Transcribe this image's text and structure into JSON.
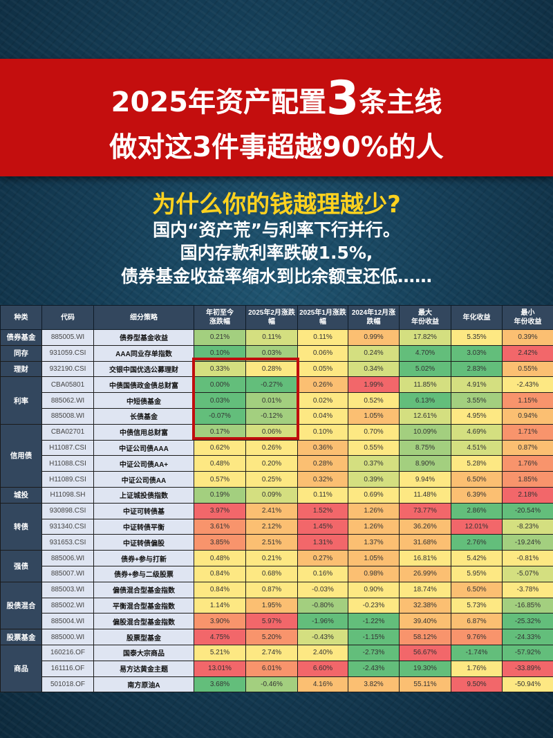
{
  "title": {
    "line1_pre": "2025年资产配置",
    "line1_num": "3",
    "line1_post": "条主线",
    "line2": "做对这3件事超越90%的人"
  },
  "subtitle": {
    "question": "为什么你的钱越理越少?",
    "line1": "国内“资产荒”与利率下行并行。",
    "line2": "国内存款利率跌破1.5%,",
    "line3": "债券基金收益率缩水到比余额宝还低……"
  },
  "palette": {
    "g": "#63be7b",
    "lg": "#a3cf7f",
    "yl": "#d4df80",
    "y": "#fde883",
    "o": "#fbbf72",
    "or": "#f8946c",
    "r": "#f2676a",
    "highlight": "#c00d0d",
    "banner": "#c40e0e"
  },
  "table": {
    "headers": [
      "种类",
      "代码",
      "细分策略",
      "年初至今\n涨跌幅",
      "2025年2月涨跌幅",
      "2025年1月涨跌幅",
      "2024年12月涨跌幅",
      "最大\n年份收益",
      "年化收益",
      "最小\n年份收益"
    ],
    "groups": [
      {
        "name": "债券基金",
        "rows": 1
      },
      {
        "name": "同存",
        "rows": 1
      },
      {
        "name": "理财",
        "rows": 1
      },
      {
        "name": "利率",
        "rows": 3
      },
      {
        "name": "信用债",
        "rows": 4
      },
      {
        "name": "城投",
        "rows": 1
      },
      {
        "name": "转债",
        "rows": 3
      },
      {
        "name": "强债",
        "rows": 2
      },
      {
        "name": "股债混合",
        "rows": 3
      },
      {
        "name": "股票基金",
        "rows": 1
      },
      {
        "name": "商品",
        "rows": 3
      }
    ],
    "rows": [
      {
        "code": "885005.WI",
        "strategy": "债券型基金收益",
        "values": [
          "0.21%",
          "0.11%",
          "0.11%",
          "0.99%",
          "17.82%",
          "5.35%",
          "0.39%"
        ],
        "colors": [
          "lg",
          "yl",
          "y",
          "o",
          "yl",
          "y",
          "o"
        ]
      },
      {
        "code": "931059.CSI",
        "strategy": "AAA同业存单指数",
        "values": [
          "0.10%",
          "0.03%",
          "0.06%",
          "0.24%",
          "4.70%",
          "3.03%",
          "2.42%"
        ],
        "colors": [
          "g",
          "lg",
          "y",
          "yl",
          "g",
          "g",
          "r"
        ]
      },
      {
        "code": "932190.CSI",
        "strategy": "交银中国优选公募理财",
        "values": [
          "0.33%",
          "0.28%",
          "0.05%",
          "0.34%",
          "5.02%",
          "2.83%",
          "0.55%"
        ],
        "colors": [
          "yl",
          "y",
          "y",
          "yl",
          "g",
          "g",
          "o"
        ]
      },
      {
        "code": "CBA05801",
        "strategy": "中债国债政金债总财富",
        "values": [
          "0.00%",
          "-0.27%",
          "0.26%",
          "1.99%",
          "11.85%",
          "4.91%",
          "-2.43%"
        ],
        "colors": [
          "g",
          "g",
          "o",
          "r",
          "yl",
          "yl",
          "y"
        ]
      },
      {
        "code": "885062.WI",
        "strategy": "中短债基金",
        "values": [
          "0.03%",
          "0.01%",
          "0.02%",
          "0.52%",
          "6.13%",
          "3.55%",
          "1.15%"
        ],
        "colors": [
          "g",
          "lg",
          "y",
          "y",
          "g",
          "lg",
          "or"
        ]
      },
      {
        "code": "885008.WI",
        "strategy": "长债基金",
        "values": [
          "-0.07%",
          "-0.12%",
          "0.04%",
          "1.05%",
          "12.61%",
          "4.95%",
          "0.94%"
        ],
        "colors": [
          "g",
          "lg",
          "y",
          "o",
          "yl",
          "y",
          "o"
        ]
      },
      {
        "code": "CBA02701",
        "strategy": "中债信用总财富",
        "values": [
          "0.17%",
          "0.06%",
          "0.10%",
          "0.70%",
          "10.09%",
          "4.69%",
          "1.71%"
        ],
        "colors": [
          "lg",
          "yl",
          "y",
          "y",
          "lg",
          "yl",
          "or"
        ]
      },
      {
        "code": "H11087.CSI",
        "strategy": "中证公司债AAA",
        "values": [
          "0.62%",
          "0.26%",
          "0.36%",
          "0.55%",
          "8.75%",
          "4.51%",
          "0.87%"
        ],
        "colors": [
          "y",
          "y",
          "o",
          "y",
          "lg",
          "yl",
          "o"
        ]
      },
      {
        "code": "H11088.CSI",
        "strategy": "中证公司债AA+",
        "values": [
          "0.48%",
          "0.20%",
          "0.28%",
          "0.37%",
          "8.90%",
          "5.28%",
          "1.76%"
        ],
        "colors": [
          "y",
          "y",
          "o",
          "yl",
          "lg",
          "y",
          "or"
        ]
      },
      {
        "code": "H11089.CSI",
        "strategy": "中证公司债AA",
        "values": [
          "0.57%",
          "0.25%",
          "0.32%",
          "0.39%",
          "9.94%",
          "6.50%",
          "1.85%"
        ],
        "colors": [
          "y",
          "y",
          "o",
          "yl",
          "y",
          "o",
          "or"
        ]
      },
      {
        "code": "H11098.SH",
        "strategy": "上证城投债指数",
        "values": [
          "0.19%",
          "0.09%",
          "0.11%",
          "0.69%",
          "11.48%",
          "6.39%",
          "2.18%"
        ],
        "colors": [
          "lg",
          "yl",
          "y",
          "y",
          "y",
          "o",
          "r"
        ]
      },
      {
        "code": "930898.CSI",
        "strategy": "中证可转债基",
        "values": [
          "3.97%",
          "2.41%",
          "1.52%",
          "1.26%",
          "73.77%",
          "2.86%",
          "-20.54%"
        ],
        "colors": [
          "r",
          "o",
          "r",
          "o",
          "r",
          "g",
          "g"
        ]
      },
      {
        "code": "931340.CSI",
        "strategy": "中证转债平衡",
        "values": [
          "3.61%",
          "2.12%",
          "1.45%",
          "1.26%",
          "36.26%",
          "12.01%",
          "-8.23%"
        ],
        "colors": [
          "or",
          "o",
          "r",
          "o",
          "o",
          "r",
          "yl"
        ]
      },
      {
        "code": "931653.CSI",
        "strategy": "中证转债偏股",
        "values": [
          "3.85%",
          "2.51%",
          "1.31%",
          "1.37%",
          "31.68%",
          "2.76%",
          "-19.24%"
        ],
        "colors": [
          "or",
          "o",
          "r",
          "o",
          "o",
          "g",
          "lg"
        ]
      },
      {
        "code": "885006.WI",
        "strategy": "债券+参与打新",
        "values": [
          "0.48%",
          "0.21%",
          "0.27%",
          "1.05%",
          "16.81%",
          "5.42%",
          "-0.81%"
        ],
        "colors": [
          "y",
          "y",
          "o",
          "o",
          "y",
          "y",
          "y"
        ]
      },
      {
        "code": "885007.WI",
        "strategy": "债券+参与二级股票",
        "values": [
          "0.84%",
          "0.68%",
          "0.16%",
          "0.98%",
          "26.99%",
          "5.95%",
          "-5.07%"
        ],
        "colors": [
          "y",
          "y",
          "y",
          "o",
          "o",
          "y",
          "yl"
        ]
      },
      {
        "code": "885003.WI",
        "strategy": "偏债混合型基金指数",
        "values": [
          "0.84%",
          "0.87%",
          "-0.03%",
          "0.90%",
          "18.74%",
          "6.50%",
          "-3.78%"
        ],
        "colors": [
          "y",
          "y",
          "y",
          "y",
          "y",
          "o",
          "y"
        ]
      },
      {
        "code": "885002.WI",
        "strategy": "平衡混合型基金指数",
        "values": [
          "1.14%",
          "1.95%",
          "-0.80%",
          "-0.23%",
          "32.38%",
          "5.73%",
          "-16.85%"
        ],
        "colors": [
          "y",
          "o",
          "lg",
          "y",
          "o",
          "y",
          "lg"
        ]
      },
      {
        "code": "885004.WI",
        "strategy": "偏股混合型基金指数",
        "values": [
          "3.90%",
          "5.97%",
          "-1.96%",
          "-1.22%",
          "39.40%",
          "6.87%",
          "-25.32%"
        ],
        "colors": [
          "or",
          "r",
          "g",
          "g",
          "o",
          "o",
          "g"
        ]
      },
      {
        "code": "885000.WI",
        "strategy": "股票型基金",
        "values": [
          "4.75%",
          "5.20%",
          "-0.43%",
          "-1.15%",
          "58.12%",
          "9.76%",
          "-24.33%"
        ],
        "colors": [
          "r",
          "or",
          "yl",
          "g",
          "or",
          "or",
          "g"
        ]
      },
      {
        "code": "160216.OF",
        "strategy": "国泰大宗商品",
        "values": [
          "5.21%",
          "2.74%",
          "2.40%",
          "-2.73%",
          "56.67%",
          "-1.74%",
          "-57.92%"
        ],
        "colors": [
          "y",
          "y",
          "y",
          "g",
          "r",
          "g",
          "g"
        ]
      },
      {
        "code": "161116.OF",
        "strategy": "易方达黄金主题",
        "values": [
          "13.01%",
          "6.01%",
          "6.60%",
          "-2.43%",
          "19.30%",
          "1.76%",
          "-33.89%"
        ],
        "colors": [
          "r",
          "or",
          "r",
          "g",
          "g",
          "y",
          "r"
        ]
      },
      {
        "code": "501018.OF",
        "strategy": "南方原油A",
        "values": [
          "3.68%",
          "-0.46%",
          "4.16%",
          "3.82%",
          "55.11%",
          "9.50%",
          "-50.94%"
        ],
        "colors": [
          "g",
          "lg",
          "o",
          "o",
          "o",
          "r",
          "y"
        ]
      }
    ]
  }
}
